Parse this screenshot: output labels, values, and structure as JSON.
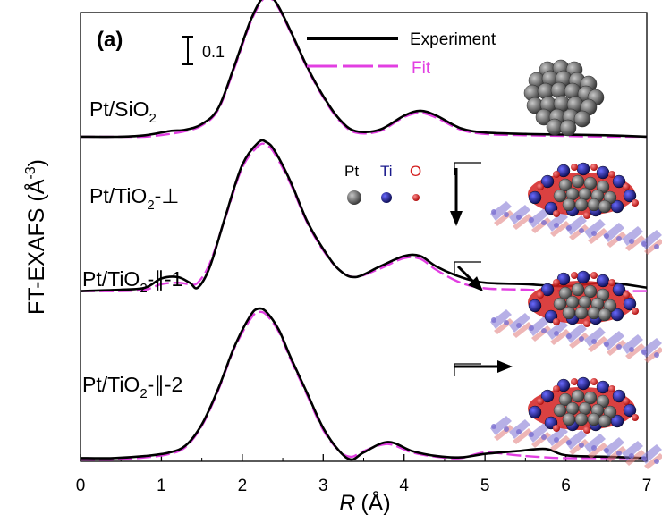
{
  "chart_data": {
    "type": "line",
    "panel_label": "(a)",
    "xlabel_symbol": "R",
    "xlabel_unit": "(Å)",
    "ylabel": "FT-EXAFS (Å",
    "ylabel_exp": "-3",
    "ylabel_close": ")",
    "xlim": [
      0,
      7
    ],
    "xticks": [
      0,
      1,
      2,
      3,
      4,
      5,
      6,
      7
    ],
    "x_tick_labels": [
      "0",
      "1",
      "2",
      "3",
      "4",
      "5",
      "6",
      "7"
    ],
    "scale_bar_value": 0.1,
    "scale_bar_label": "0.1",
    "legend": {
      "placement": "top-center",
      "experiment": "Experiment",
      "fit": "Fit"
    },
    "atom_legend": {
      "pt": "Pt",
      "ti": "Ti",
      "o": "O"
    },
    "colors": {
      "experiment": "#000000",
      "fit": "#e23fe2",
      "pt_atom": "#5a5a5a",
      "ti_atom": "#1a1a8c",
      "o_atom": "#d42020",
      "surface": "#7b6fd1",
      "surface_o": "#e07a7a"
    },
    "series": [
      {
        "label_main": "Pt/SiO",
        "label_sub": "2",
        "label_suffix": "",
        "offset": 0.69,
        "experiment": [
          [
            0,
            0.002
          ],
          [
            0.4,
            0.002
          ],
          [
            0.8,
            0.005
          ],
          [
            1.2,
            0.02
          ],
          [
            1.5,
            0.045
          ],
          [
            1.8,
            0.11
          ],
          [
            2.0,
            0.175
          ],
          [
            2.2,
            0.23
          ],
          [
            2.3,
            0.247
          ],
          [
            2.35,
            0.248
          ],
          [
            2.45,
            0.235
          ],
          [
            2.6,
            0.19
          ],
          [
            2.8,
            0.13
          ],
          [
            3.0,
            0.095
          ],
          [
            3.15,
            0.06
          ],
          [
            3.3,
            0.02
          ],
          [
            3.45,
            0.002
          ],
          [
            3.6,
            0.005
          ],
          [
            3.9,
            0.022
          ],
          [
            4.2,
            0.042
          ],
          [
            4.4,
            0.04
          ],
          [
            4.6,
            0.02
          ],
          [
            4.8,
            0.008
          ],
          [
            5.2,
            0.015
          ],
          [
            5.5,
            0.01
          ],
          [
            6.0,
            0.003
          ],
          [
            6.5,
            0.006
          ],
          [
            7.0,
            0.003
          ]
        ],
        "fit": [
          [
            0,
            0.0
          ],
          [
            0.4,
            0.0
          ],
          [
            0.8,
            0.003
          ],
          [
            1.2,
            0.015
          ],
          [
            1.5,
            0.04
          ],
          [
            1.8,
            0.1
          ],
          [
            2.0,
            0.165
          ],
          [
            2.2,
            0.218
          ],
          [
            2.3,
            0.236
          ],
          [
            2.4,
            0.24
          ],
          [
            2.5,
            0.228
          ],
          [
            2.6,
            0.192
          ],
          [
            2.8,
            0.128
          ],
          [
            3.0,
            0.09
          ],
          [
            3.15,
            0.055
          ],
          [
            3.3,
            0.018
          ],
          [
            3.45,
            0.003
          ],
          [
            3.6,
            0.004
          ],
          [
            3.9,
            0.02
          ],
          [
            4.2,
            0.034
          ],
          [
            4.4,
            0.03
          ],
          [
            4.6,
            0.015
          ],
          [
            4.8,
            0.01
          ],
          [
            5.2,
            0.018
          ],
          [
            5.5,
            0.012
          ],
          [
            6.0,
            0.0
          ],
          [
            6.5,
            -0.006
          ],
          [
            7.0,
            -0.004
          ]
        ]
      },
      {
        "label_main": "Pt/TiO",
        "label_sub": "2",
        "label_suffix": "-⊥",
        "offset": 0.46,
        "experiment": [
          [
            0,
            0.0
          ],
          [
            0.5,
            0.0
          ],
          [
            0.8,
            0.002
          ],
          [
            1.1,
            0.008
          ],
          [
            1.3,
            0.01
          ],
          [
            1.5,
            0.018
          ],
          [
            1.7,
            0.04
          ],
          [
            1.9,
            0.1
          ],
          [
            2.1,
            0.165
          ],
          [
            2.25,
            0.198
          ],
          [
            2.35,
            0.2
          ],
          [
            2.45,
            0.185
          ],
          [
            2.6,
            0.15
          ],
          [
            2.8,
            0.1
          ],
          [
            3.0,
            0.058
          ],
          [
            3.2,
            0.025
          ],
          [
            3.4,
            0.008
          ],
          [
            3.7,
            0.01
          ],
          [
            4.0,
            0.03
          ],
          [
            4.2,
            0.037
          ],
          [
            4.4,
            0.03
          ],
          [
            4.7,
            0.012
          ],
          [
            5.0,
            0.006
          ],
          [
            5.5,
            0.004
          ],
          [
            6.0,
            0.003
          ],
          [
            6.5,
            0.002
          ],
          [
            7.0,
            0.0
          ]
        ],
        "fit": [
          [
            0,
            0.0
          ],
          [
            0.5,
            0.0
          ],
          [
            0.8,
            0.0
          ],
          [
            1.1,
            0.004
          ],
          [
            1.3,
            0.008
          ],
          [
            1.5,
            0.016
          ],
          [
            1.7,
            0.038
          ],
          [
            1.9,
            0.097
          ],
          [
            2.1,
            0.162
          ],
          [
            2.25,
            0.195
          ],
          [
            2.35,
            0.197
          ],
          [
            2.45,
            0.183
          ],
          [
            2.6,
            0.148
          ],
          [
            2.8,
            0.098
          ],
          [
            3.0,
            0.056
          ],
          [
            3.2,
            0.023
          ],
          [
            3.4,
            0.006
          ],
          [
            3.7,
            0.008
          ],
          [
            4.0,
            0.028
          ],
          [
            4.2,
            0.034
          ],
          [
            4.4,
            0.027
          ],
          [
            4.7,
            0.01
          ],
          [
            5.0,
            0.004
          ],
          [
            5.5,
            0.002
          ],
          [
            6.0,
            0.001
          ],
          [
            6.5,
            0.0
          ],
          [
            7.0,
            0.0
          ]
        ]
      },
      {
        "label_main": "Pt/TiO",
        "label_sub": "2",
        "label_suffix": "-∥-1",
        "offset": 0.24,
        "experiment": [
          [
            0,
            0.0
          ],
          [
            0.5,
            0.002
          ],
          [
            0.8,
            0.005
          ],
          [
            1.0,
            0.018
          ],
          [
            1.2,
            0.02
          ],
          [
            1.35,
            0.012
          ],
          [
            1.45,
            0.005
          ],
          [
            1.6,
            0.035
          ],
          [
            1.8,
            0.11
          ],
          [
            2.0,
            0.18
          ],
          [
            2.2,
            0.212
          ],
          [
            2.3,
            0.212
          ],
          [
            2.4,
            0.2
          ],
          [
            2.6,
            0.155
          ],
          [
            2.8,
            0.1
          ],
          [
            3.0,
            0.06
          ],
          [
            3.2,
            0.03
          ],
          [
            3.4,
            0.02
          ],
          [
            3.7,
            0.035
          ],
          [
            4.0,
            0.05
          ],
          [
            4.2,
            0.05
          ],
          [
            4.4,
            0.035
          ],
          [
            4.7,
            0.02
          ],
          [
            5.0,
            0.012
          ],
          [
            5.5,
            0.01
          ],
          [
            6.0,
            0.007
          ],
          [
            6.5,
            0.012
          ],
          [
            7.0,
            0.005
          ]
        ],
        "fit": [
          [
            0,
            0.0
          ],
          [
            0.5,
            0.0
          ],
          [
            0.8,
            0.002
          ],
          [
            1.0,
            0.01
          ],
          [
            1.2,
            0.012
          ],
          [
            1.35,
            0.01
          ],
          [
            1.45,
            0.012
          ],
          [
            1.6,
            0.04
          ],
          [
            1.8,
            0.108
          ],
          [
            2.0,
            0.176
          ],
          [
            2.2,
            0.207
          ],
          [
            2.3,
            0.208
          ],
          [
            2.4,
            0.196
          ],
          [
            2.6,
            0.152
          ],
          [
            2.8,
            0.098
          ],
          [
            3.0,
            0.058
          ],
          [
            3.2,
            0.03
          ],
          [
            3.4,
            0.02
          ],
          [
            3.7,
            0.032
          ],
          [
            4.0,
            0.047
          ],
          [
            4.2,
            0.046
          ],
          [
            4.4,
            0.03
          ],
          [
            4.7,
            0.012
          ],
          [
            5.0,
            0.004
          ],
          [
            5.5,
            0.002
          ],
          [
            6.0,
            0.0
          ],
          [
            6.5,
            0.0
          ],
          [
            7.0,
            0.0
          ]
        ]
      },
      {
        "label_main": "Pt/TiO",
        "label_sub": "2",
        "label_suffix": "-∥-2",
        "offset": 0.0,
        "experiment": [
          [
            0,
            0.002
          ],
          [
            0.4,
            0.002
          ],
          [
            0.8,
            0.005
          ],
          [
            1.1,
            0.01
          ],
          [
            1.3,
            0.02
          ],
          [
            1.5,
            0.05
          ],
          [
            1.7,
            0.1
          ],
          [
            1.9,
            0.16
          ],
          [
            2.1,
            0.205
          ],
          [
            2.2,
            0.215
          ],
          [
            2.3,
            0.21
          ],
          [
            2.45,
            0.185
          ],
          [
            2.6,
            0.145
          ],
          [
            2.8,
            0.095
          ],
          [
            3.0,
            0.045
          ],
          [
            3.2,
            0.012
          ],
          [
            3.35,
            0.0
          ],
          [
            3.5,
            0.01
          ],
          [
            3.8,
            0.025
          ],
          [
            4.1,
            0.012
          ],
          [
            4.4,
            0.005
          ],
          [
            4.7,
            0.003
          ],
          [
            5.0,
            0.008
          ],
          [
            5.4,
            0.012
          ],
          [
            5.75,
            0.015
          ],
          [
            6.0,
            0.006
          ],
          [
            6.5,
            0.004
          ],
          [
            7.0,
            0.002
          ]
        ],
        "fit": [
          [
            0,
            0.0
          ],
          [
            0.4,
            0.0
          ],
          [
            0.8,
            0.003
          ],
          [
            1.1,
            0.008
          ],
          [
            1.3,
            0.018
          ],
          [
            1.5,
            0.048
          ],
          [
            1.7,
            0.098
          ],
          [
            1.9,
            0.158
          ],
          [
            2.1,
            0.2
          ],
          [
            2.2,
            0.21
          ],
          [
            2.3,
            0.206
          ],
          [
            2.45,
            0.182
          ],
          [
            2.6,
            0.142
          ],
          [
            2.8,
            0.092
          ],
          [
            3.0,
            0.042
          ],
          [
            3.2,
            0.012
          ],
          [
            3.35,
            0.004
          ],
          [
            3.5,
            0.012
          ],
          [
            3.8,
            0.022
          ],
          [
            4.1,
            0.01
          ],
          [
            4.4,
            0.004
          ],
          [
            4.7,
            0.002
          ],
          [
            5.0,
            0.01
          ],
          [
            5.4,
            0.006
          ],
          [
            5.75,
            0.003
          ],
          [
            6.0,
            0.002
          ],
          [
            6.5,
            0.002
          ],
          [
            7.0,
            0.002
          ]
        ]
      }
    ]
  }
}
